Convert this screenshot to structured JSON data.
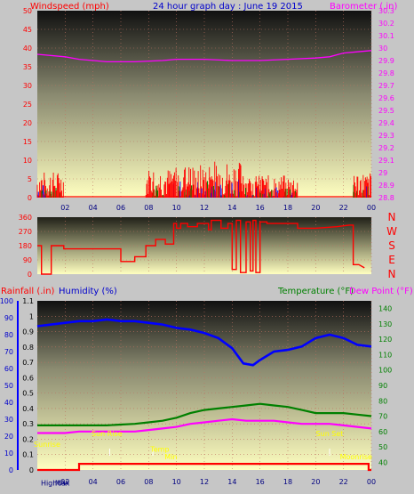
{
  "header": {
    "left_title": "Windspeed (mph)",
    "center_title": "24 hour graph day : June 19 2015",
    "right_title": "Barometer (.in)"
  },
  "colors": {
    "wind": "#ff0000",
    "gust_green": "#008000",
    "gust_blue": "#0000ff",
    "barometer": "#ff00ff",
    "direction": "#ff0000",
    "humidity": "#0000ff",
    "temperature": "#008000",
    "dewpoint": "#ff00ff",
    "rain": "#ff0000",
    "label_blue": "#0000cc",
    "label_red": "#ff0000",
    "label_green": "#008000",
    "label_magenta": "#ff00ff",
    "sun_yellow": "#ffff00"
  },
  "x_ticks": [
    "02",
    "04",
    "06",
    "08",
    "10",
    "12",
    "14",
    "16",
    "18",
    "20",
    "22",
    "00"
  ],
  "chart_data": [
    {
      "type": "bar",
      "name": "wind",
      "title": "",
      "ylabel": "Windspeed (mph)",
      "y2label": "Barometer (.in)",
      "ylim": [
        0,
        50
      ],
      "y_ticks": [
        "0",
        "5",
        "10",
        "15",
        "20",
        "25",
        "30",
        "35",
        "40",
        "45",
        "50"
      ],
      "y2lim": [
        28.8,
        30.3
      ],
      "y2_ticks": [
        "28.8",
        "28.9",
        "29",
        "29.1",
        "29.2",
        "29.3",
        "29.4",
        "29.5",
        "29.6",
        "29.7",
        "29.8",
        "29.9",
        "30",
        "30.1",
        "30.2",
        "30.3"
      ],
      "xlim": [
        0,
        24
      ],
      "wind_bursts": [
        {
          "x": [
            0.0,
            1.9
          ],
          "max": 7
        },
        {
          "x": [
            7.8,
            9.8
          ],
          "max": 8
        },
        {
          "x": [
            9.8,
            12.2
          ],
          "max": 9
        },
        {
          "x": [
            12.2,
            15.0
          ],
          "max": 10
        },
        {
          "x": [
            15.0,
            18.7
          ],
          "max": 6
        },
        {
          "x": [
            22.7,
            24.0
          ],
          "max": 7
        }
      ],
      "barometer": {
        "x": [
          0,
          2,
          3,
          5,
          7,
          9,
          10,
          12,
          14,
          16,
          18,
          20,
          21,
          22,
          23,
          24
        ],
        "y": [
          29.95,
          29.93,
          29.91,
          29.89,
          29.89,
          29.9,
          29.91,
          29.91,
          29.9,
          29.9,
          29.91,
          29.92,
          29.93,
          29.96,
          29.97,
          29.98
        ]
      }
    },
    {
      "type": "line",
      "name": "wind-direction",
      "y_ticks": [
        "360",
        "270",
        "180",
        "90",
        "0"
      ],
      "ylim": [
        0,
        360
      ],
      "compass": [
        "N",
        "W",
        "S",
        "E",
        "N"
      ],
      "xlim": [
        0,
        24
      ],
      "x": [
        0.0,
        0.3,
        0.3,
        1.0,
        1.0,
        1.9,
        1.9,
        4.0,
        6.0,
        6.0,
        7.0,
        7.0,
        7.8,
        7.8,
        8.5,
        8.5,
        9.2,
        9.2,
        9.7,
        9.8,
        9.8,
        10.0,
        10.0,
        10.3,
        10.3,
        10.8,
        10.8,
        11.5,
        11.5,
        12.3,
        12.3,
        12.5,
        12.5,
        13.2,
        13.2,
        13.7,
        13.7,
        14.0,
        14.0,
        14.3,
        14.3,
        14.6,
        14.6,
        15.0,
        15.0,
        15.3,
        15.3,
        15.5,
        15.5,
        15.7,
        15.7,
        16.0,
        16.0,
        16.5,
        16.5,
        17.8,
        17.8,
        18.7,
        18.7,
        20.0,
        21.5,
        22.4,
        22.7,
        22.7,
        23.1,
        23.5
      ],
      "y": [
        180,
        180,
        0,
        0,
        180,
        180,
        160,
        160,
        160,
        80,
        80,
        110,
        110,
        180,
        180,
        220,
        220,
        190,
        190,
        190,
        320,
        320,
        290,
        290,
        320,
        320,
        300,
        300,
        320,
        320,
        280,
        280,
        340,
        340,
        290,
        290,
        320,
        320,
        30,
        30,
        340,
        340,
        10,
        10,
        330,
        330,
        20,
        20,
        340,
        340,
        10,
        10,
        330,
        330,
        320,
        320,
        320,
        320,
        290,
        290,
        300,
        310,
        310,
        60,
        60,
        40
      ]
    },
    {
      "type": "line",
      "name": "humidity-temperature",
      "ylabel": "Humidity (%)",
      "y2label": "Temperature (°F)",
      "y3label": "Dew Point (°F)",
      "rain_label": "Rainfall (.in)",
      "humidity_lim": [
        0,
        100
      ],
      "humidity_ticks": [
        "100",
        "90",
        "80",
        "70",
        "60",
        "50",
        "40",
        "30",
        "20",
        "10",
        "0"
      ],
      "rain_lim": [
        0,
        1.1
      ],
      "rain_ticks": [
        "1.1",
        "1",
        "0.9",
        "0.8",
        "0.7",
        "0.6",
        "0.5",
        "0.4",
        "0.3",
        "0.2",
        "0.1",
        "0"
      ],
      "temp_lim": [
        35,
        145
      ],
      "temp_ticks": [
        "140",
        "130",
        "120",
        "110",
        "100",
        "90",
        "80",
        "70",
        "60",
        "50",
        "40"
      ],
      "xlim": [
        0,
        24
      ],
      "series": [
        {
          "name": "Humidity",
          "x": [
            0,
            1,
            2,
            3,
            4,
            5,
            6,
            7,
            8,
            9,
            10,
            11,
            12,
            13,
            14,
            14.8,
            15.5,
            16,
            17,
            18,
            19,
            20,
            21,
            22,
            23,
            24
          ],
          "y": [
            85,
            86,
            87,
            88,
            88,
            89,
            88,
            88,
            87,
            86,
            84,
            83,
            81,
            78,
            72,
            63,
            62,
            65,
            70,
            71,
            73,
            78,
            80,
            78,
            74,
            73
          ]
        },
        {
          "name": "Temperature",
          "x": [
            0,
            1,
            2,
            3,
            4,
            5,
            6,
            7,
            8,
            9,
            10,
            11,
            12,
            13,
            14,
            15,
            16,
            17,
            18,
            19,
            20,
            21,
            22,
            23,
            24
          ],
          "y": [
            64,
            64,
            64,
            64,
            64,
            64,
            64.5,
            65,
            66,
            67,
            69,
            72,
            74,
            75,
            76,
            77,
            78,
            77,
            76,
            74,
            72,
            72,
            72,
            71,
            70
          ]
        },
        {
          "name": "Dew Point",
          "x": [
            0,
            1,
            2,
            3,
            4,
            5,
            6,
            7,
            8,
            9,
            10,
            11,
            12,
            13,
            14,
            15,
            16,
            17,
            18,
            19,
            20,
            21,
            22,
            23,
            24
          ],
          "y": [
            59,
            59,
            59,
            60,
            60,
            60,
            60,
            60,
            61,
            62,
            63,
            65,
            66,
            67,
            68,
            67,
            67,
            67,
            66,
            65,
            65,
            65,
            64,
            63,
            62
          ]
        },
        {
          "name": "Rainfall",
          "x": [
            0,
            3,
            3,
            23.8,
            23.8,
            24
          ],
          "y": [
            0,
            0,
            0.04,
            0.04,
            0,
            0
          ]
        }
      ],
      "annotations": [
        {
          "text": "Sunrise",
          "x": 0.7,
          "y": 0.15
        },
        {
          "text": "Sun Rise",
          "x": 5.0,
          "y": 0.22
        },
        {
          "text": "Sun Set",
          "x": 21.0,
          "y": 0.22
        },
        {
          "text": "Moonrise",
          "x": 22.9,
          "y": 0.07
        },
        {
          "text": "HighUV",
          "x": 1.2,
          "y": -0.1
        },
        {
          "text": "Max",
          "x": 1.8,
          "y": -0.1
        },
        {
          "text": "Temp",
          "x": 8.8,
          "y": 0.12
        },
        {
          "text": "Min",
          "x": 9.6,
          "y": 0.07
        }
      ],
      "sun_markers": [
        5.2,
        8.3,
        21.0
      ]
    }
  ]
}
